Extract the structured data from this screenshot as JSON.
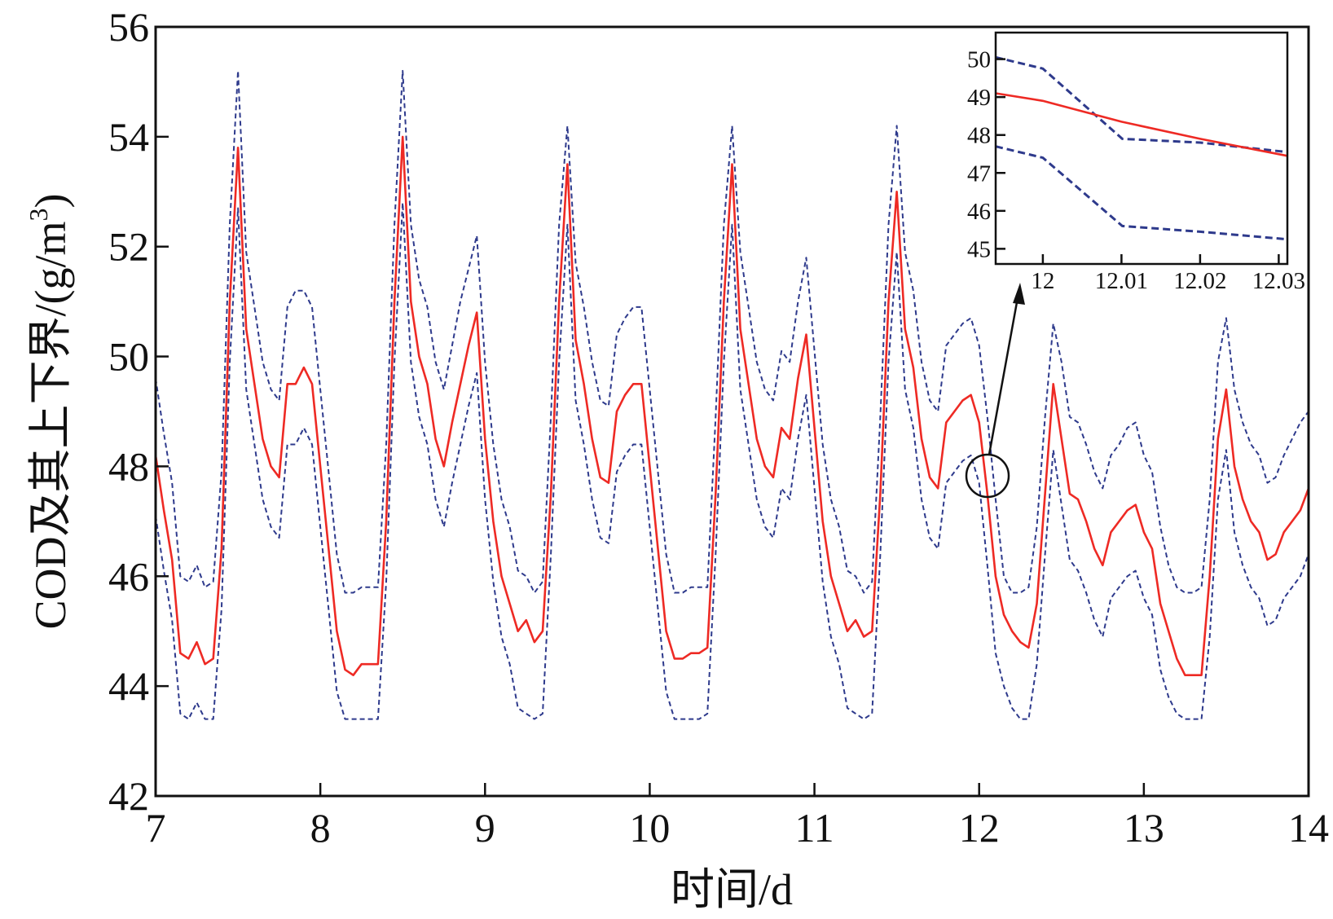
{
  "chart_data": {
    "type": "line",
    "xlabel": "时间/d",
    "ylabel": "COD及其上下界/(g/m",
    "ylabel_sup": "3",
    "ylabel_tail": ")",
    "xlim": [
      7,
      14
    ],
    "ylim": [
      42,
      56
    ],
    "xticks": [
      "7",
      "8",
      "9",
      "10",
      "11",
      "12",
      "13",
      "14"
    ],
    "yticks": [
      "42",
      "44",
      "46",
      "48",
      "50",
      "52",
      "54",
      "56"
    ],
    "colors": {
      "mean": "#ee2a24",
      "bounds": "#2e3a8c"
    },
    "x_start": 7,
    "x_step": 0.05,
    "series": [
      {
        "name": "COD",
        "style": "solid",
        "values": [
          48.2,
          47.2,
          46.3,
          44.6,
          44.5,
          44.8,
          44.4,
          44.5,
          46.5,
          51.0,
          53.8,
          50.5,
          49.5,
          48.5,
          48.0,
          47.8,
          49.5,
          49.5,
          49.8,
          49.5,
          48.0,
          46.5,
          45.0,
          44.3,
          44.2,
          44.4,
          44.4,
          44.4,
          47.0,
          51.0,
          54.0,
          51.0,
          50.0,
          49.5,
          48.5,
          48.0,
          48.8,
          49.5,
          50.2,
          50.8,
          48.5,
          47.0,
          46.0,
          45.5,
          45.0,
          45.2,
          44.8,
          45.0,
          47.5,
          51.0,
          53.5,
          50.3,
          49.5,
          48.5,
          47.8,
          47.7,
          49.0,
          49.3,
          49.5,
          49.5,
          48.0,
          46.5,
          45.0,
          44.5,
          44.5,
          44.6,
          44.6,
          44.7,
          47.5,
          51.0,
          53.5,
          50.5,
          49.5,
          48.5,
          48.0,
          47.8,
          48.7,
          48.5,
          49.6,
          50.4,
          48.7,
          47.0,
          46.0,
          45.5,
          45.0,
          45.2,
          44.9,
          45.0,
          47.5,
          51.0,
          53.0,
          50.5,
          49.8,
          48.5,
          47.8,
          47.6,
          48.8,
          49.0,
          49.2,
          49.3,
          48.8,
          47.5,
          46.0,
          45.3,
          45.0,
          44.8,
          44.7,
          45.5,
          47.5,
          49.5,
          48.5,
          47.5,
          47.4,
          47.0,
          46.5,
          46.2,
          46.8,
          47.0,
          47.2,
          47.3,
          46.8,
          46.5,
          45.5,
          45.0,
          44.5,
          44.2,
          44.2,
          44.2,
          46.0,
          48.5,
          49.4,
          48.0,
          47.4,
          47.0,
          46.8,
          46.3,
          46.4,
          46.8,
          47.0,
          47.2,
          47.6
        ]
      },
      {
        "name": "upper bound",
        "style": "dashed",
        "values": [
          49.6,
          48.6,
          47.7,
          46.0,
          45.9,
          46.2,
          45.8,
          45.9,
          47.9,
          52.4,
          55.2,
          51.9,
          50.9,
          49.9,
          49.4,
          49.2,
          50.9,
          51.2,
          51.2,
          50.9,
          49.4,
          47.9,
          46.4,
          45.7,
          45.7,
          45.8,
          45.8,
          45.8,
          48.4,
          52.4,
          55.2,
          52.4,
          51.4,
          50.9,
          49.9,
          49.4,
          50.2,
          51.0,
          51.6,
          52.2,
          49.9,
          48.4,
          47.4,
          46.9,
          46.1,
          46.0,
          45.7,
          45.9,
          48.9,
          52.4,
          54.2,
          51.7,
          50.9,
          49.9,
          49.2,
          49.1,
          50.4,
          50.7,
          50.9,
          50.9,
          49.4,
          47.9,
          46.4,
          45.7,
          45.7,
          45.8,
          45.8,
          45.8,
          48.9,
          52.4,
          54.2,
          51.9,
          50.9,
          49.9,
          49.4,
          49.2,
          50.1,
          49.9,
          51.0,
          51.8,
          50.1,
          48.4,
          47.4,
          46.9,
          46.1,
          46.0,
          45.7,
          45.9,
          48.9,
          52.4,
          54.2,
          51.9,
          51.2,
          49.9,
          49.2,
          49.0,
          50.2,
          50.4,
          50.6,
          50.7,
          50.2,
          48.9,
          47.4,
          46.0,
          45.7,
          45.7,
          45.8,
          46.9,
          48.9,
          50.6,
          49.9,
          48.9,
          48.8,
          48.4,
          47.9,
          47.6,
          48.2,
          48.4,
          48.7,
          48.8,
          48.2,
          47.9,
          46.9,
          46.2,
          45.8,
          45.7,
          45.7,
          45.8,
          47.4,
          49.9,
          50.7,
          49.4,
          48.8,
          48.4,
          48.2,
          47.7,
          47.8,
          48.2,
          48.5,
          48.8,
          49.0
        ]
      },
      {
        "name": "lower bound",
        "style": "dashed",
        "values": [
          47.1,
          46.1,
          45.2,
          43.5,
          43.4,
          43.7,
          43.4,
          43.4,
          45.4,
          49.9,
          52.7,
          49.4,
          48.4,
          47.4,
          46.9,
          46.7,
          48.4,
          48.4,
          48.7,
          48.4,
          46.9,
          45.4,
          43.9,
          43.4,
          43.4,
          43.4,
          43.4,
          43.4,
          45.9,
          49.9,
          52.8,
          49.9,
          48.9,
          48.4,
          47.4,
          46.9,
          47.7,
          48.4,
          49.1,
          49.7,
          47.4,
          45.9,
          44.9,
          44.4,
          43.6,
          43.5,
          43.4,
          43.5,
          46.4,
          49.9,
          52.4,
          49.2,
          48.4,
          47.4,
          46.7,
          46.6,
          47.9,
          48.2,
          48.4,
          48.4,
          46.9,
          45.4,
          43.9,
          43.4,
          43.4,
          43.4,
          43.4,
          43.5,
          46.4,
          49.9,
          52.4,
          49.4,
          48.4,
          47.4,
          46.9,
          46.7,
          47.6,
          47.4,
          48.5,
          49.3,
          47.6,
          45.9,
          44.9,
          44.4,
          43.6,
          43.5,
          43.4,
          43.5,
          46.4,
          49.9,
          51.9,
          49.4,
          48.7,
          47.4,
          46.7,
          46.5,
          47.7,
          47.9,
          48.1,
          48.2,
          47.7,
          46.2,
          44.6,
          44.0,
          43.6,
          43.4,
          43.4,
          44.4,
          46.4,
          48.3,
          47.3,
          46.3,
          46.1,
          45.7,
          45.2,
          44.9,
          45.6,
          45.8,
          46.0,
          46.1,
          45.6,
          45.3,
          44.3,
          43.8,
          43.5,
          43.4,
          43.4,
          43.4,
          44.9,
          47.4,
          48.3,
          46.8,
          46.2,
          45.8,
          45.6,
          45.1,
          45.2,
          45.6,
          45.8,
          46.0,
          46.4
        ]
      }
    ],
    "inset": {
      "xlim": [
        11.994,
        12.0311
      ],
      "ylim": [
        44.6,
        50.7
      ],
      "xticks": [
        {
          "v": 12,
          "label": "12"
        },
        {
          "v": 12.01,
          "label": "12.01"
        },
        {
          "v": 12.02,
          "label": "12.02"
        },
        {
          "v": 12.03,
          "label": "12.03"
        }
      ],
      "yticks": [
        "45",
        "46",
        "47",
        "48",
        "49",
        "50"
      ],
      "zoom_center": [
        12.03,
        47.9
      ],
      "series": [
        {
          "name": "COD",
          "style": "solid",
          "x": [
            11.994,
            12.0,
            12.01,
            12.02,
            12.0311
          ],
          "y": [
            49.1,
            48.9,
            48.35,
            47.9,
            47.45
          ]
        },
        {
          "name": "upper bound",
          "style": "dashed",
          "x": [
            11.994,
            12.0,
            12.0101,
            12.02,
            12.0311
          ],
          "y": [
            50.05,
            49.75,
            47.9,
            47.8,
            47.55
          ]
        },
        {
          "name": "lower bound",
          "style": "dashed",
          "x": [
            11.994,
            12.0,
            12.0101,
            12.02,
            12.0311
          ],
          "y": [
            47.7,
            47.4,
            45.6,
            45.45,
            45.25
          ]
        }
      ]
    }
  }
}
